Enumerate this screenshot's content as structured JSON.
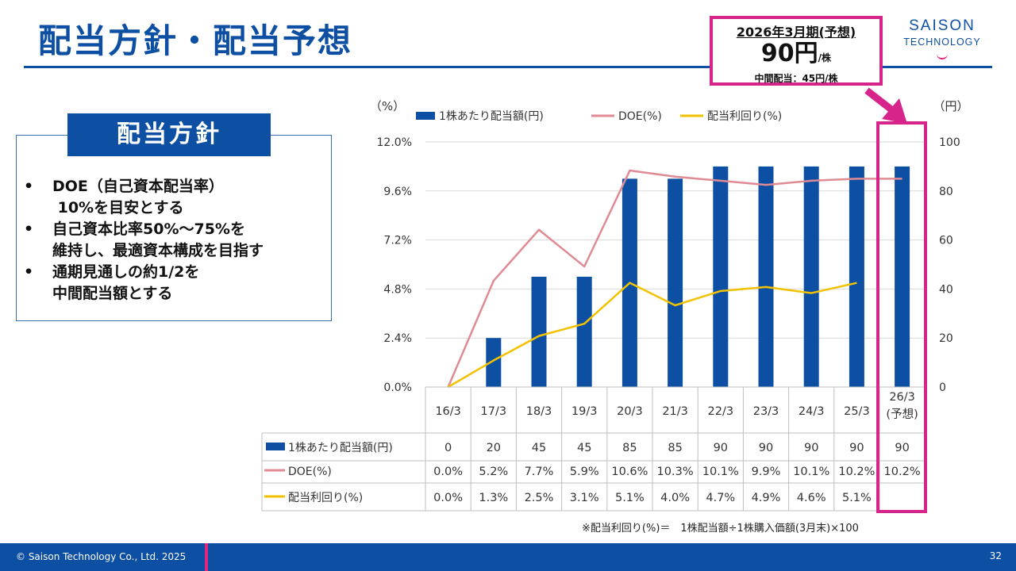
{
  "page": {
    "title": "配当方針・配当予想",
    "logo_line1": "SAISON",
    "logo_line2": "TECHNOLOGY",
    "copyright": "© Saison Technology Co., Ltd. 2025",
    "page_number": "32",
    "footnote": "※配当利回り(%)＝　1株配当額÷1株購入価額(3月末)×100",
    "colors": {
      "brand_blue": "#0d4fa3",
      "accent_magenta": "#d6248a",
      "doe_line": "#e08a94",
      "yield_line": "#f2c200"
    }
  },
  "forecast_box": {
    "period": "2026年3月期(予想)",
    "value": "90円",
    "unit": "/株",
    "interim": "中間配当：45円/株"
  },
  "policy": {
    "heading": "配当方針",
    "items": [
      [
        "DOE（自己資本配当率）",
        " 10%を目安とする"
      ],
      [
        "自己資本比率50%～75%を",
        "維持し、最適資本構成を目指す"
      ],
      [
        "通期見通しの約1/2を",
        "中間配当額とする"
      ]
    ]
  },
  "chart_data": {
    "type": "bar",
    "left_axis_unit": "（%）",
    "right_axis_unit": "（円）",
    "left_ticks": [
      "0.0%",
      "2.4%",
      "4.8%",
      "7.2%",
      "9.6%",
      "12.0%"
    ],
    "right_ticks": [
      "0",
      "20",
      "40",
      "60",
      "80",
      "100"
    ],
    "left_ylim": [
      0,
      12
    ],
    "right_ylim": [
      0,
      100
    ],
    "categories": [
      "16/3",
      "17/3",
      "18/3",
      "19/3",
      "20/3",
      "21/3",
      "22/3",
      "23/3",
      "24/3",
      "25/3",
      "26/3\n(予想)"
    ],
    "series": [
      {
        "name": "1株あたり配当額(円)",
        "type": "bar",
        "axis": "right",
        "values": [
          0,
          20,
          45,
          45,
          85,
          85,
          90,
          90,
          90,
          90,
          90
        ],
        "labels": [
          "0",
          "20",
          "45",
          "45",
          "85",
          "85",
          "90",
          "90",
          "90",
          "90",
          "90"
        ]
      },
      {
        "name": "DOE(%)",
        "type": "line",
        "axis": "left",
        "values": [
          0.0,
          5.2,
          7.7,
          5.9,
          10.6,
          10.3,
          10.1,
          9.9,
          10.1,
          10.2,
          10.2
        ],
        "labels": [
          "0.0%",
          "5.2%",
          "7.7%",
          "5.9%",
          "10.6%",
          "10.3%",
          "10.1%",
          "9.9%",
          "10.1%",
          "10.2%",
          "10.2%"
        ]
      },
      {
        "name": "配当利回り(%)",
        "type": "line",
        "axis": "left",
        "values": [
          0.0,
          1.3,
          2.5,
          3.1,
          5.1,
          4.0,
          4.7,
          4.9,
          4.6,
          5.1,
          null
        ],
        "labels": [
          "0.0%",
          "1.3%",
          "2.5%",
          "3.1%",
          "5.1%",
          "4.0%",
          "4.7%",
          "4.9%",
          "4.6%",
          "5.1%",
          ""
        ]
      }
    ],
    "legend_position": "top"
  }
}
